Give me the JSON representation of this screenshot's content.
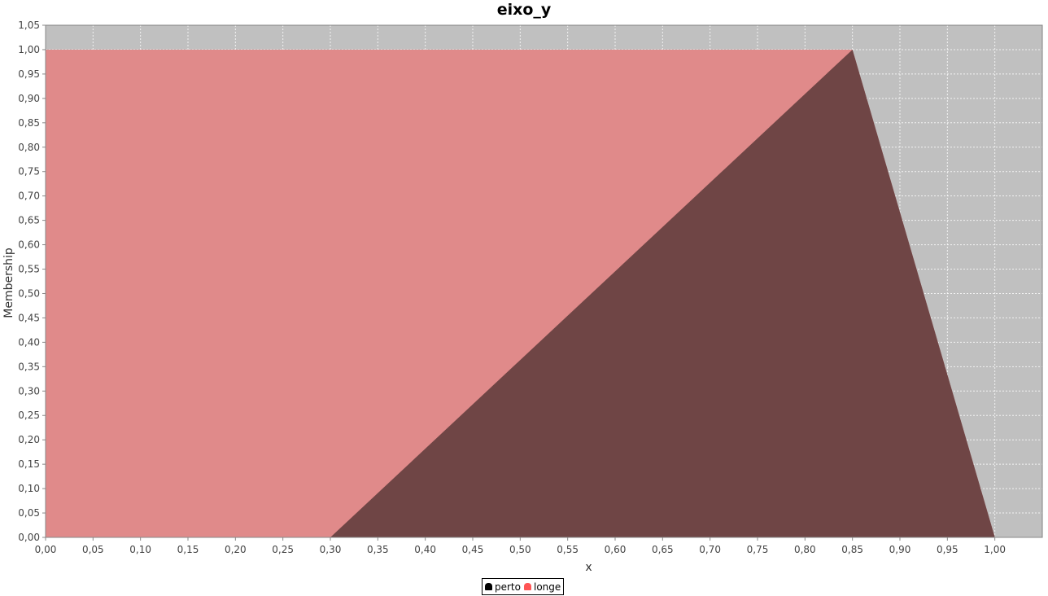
{
  "chart_data": {
    "type": "area",
    "title": "eixo_y",
    "xlabel": "x",
    "ylabel": "Membership",
    "xlim": [
      0,
      1.05
    ],
    "ylim": [
      0,
      1.05
    ],
    "x_ticks": [
      "0,00",
      "0,05",
      "0,10",
      "0,15",
      "0,20",
      "0,25",
      "0,30",
      "0,35",
      "0,40",
      "0,45",
      "0,50",
      "0,55",
      "0,60",
      "0,65",
      "0,70",
      "0,75",
      "0,80",
      "0,85",
      "0,90",
      "0,95",
      "1,00"
    ],
    "y_ticks": [
      "0,00",
      "0,05",
      "0,10",
      "0,15",
      "0,20",
      "0,25",
      "0,30",
      "0,35",
      "0,40",
      "0,45",
      "0,50",
      "0,55",
      "0,60",
      "0,65",
      "0,70",
      "0,75",
      "0,80",
      "0,85",
      "0,90",
      "0,95",
      "1,00",
      "1,05"
    ],
    "grid": true,
    "legend_position": "bottom",
    "series": [
      {
        "name": "perto",
        "color": "#5e5e5e",
        "x": [
          0.3,
          0.85,
          1.0
        ],
        "y": [
          0,
          1,
          0
        ]
      },
      {
        "name": "longe",
        "color": "#e08a8a",
        "x": [
          0.0,
          0.85,
          1.0
        ],
        "y": [
          1,
          1,
          0
        ]
      }
    ]
  },
  "legend": {
    "items": [
      {
        "label": "perto",
        "color": "#000000"
      },
      {
        "label": "longe",
        "color": "#ff5555"
      }
    ]
  },
  "colors": {
    "plot_background": "#c0c0c0",
    "overlap": "#6f4545"
  }
}
